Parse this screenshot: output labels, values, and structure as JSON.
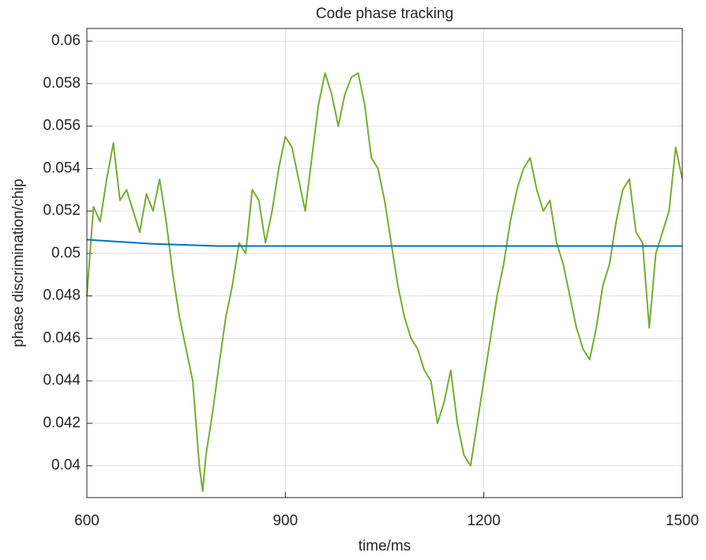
{
  "chart_data": {
    "type": "line",
    "title": "Code phase tracking",
    "x_label": "time/ms",
    "y_label": "phase discrimination/chip",
    "xlim": [
      600,
      1500
    ],
    "xticks": [
      600,
      900,
      1200,
      1500
    ],
    "ylim": [
      0.0385,
      0.0606
    ],
    "yticks": [
      0.04,
      0.042,
      0.044,
      0.046,
      0.048,
      0.05,
      0.052,
      0.054,
      0.056,
      0.058,
      0.06
    ],
    "grid": true,
    "series": [
      {
        "color": "#77ac30",
        "x": [
          600,
          610,
          620,
          630,
          640,
          650,
          660,
          670,
          680,
          690,
          700,
          710,
          720,
          730,
          740,
          750,
          760,
          770,
          775,
          780,
          790,
          800,
          810,
          820,
          830,
          840,
          850,
          860,
          870,
          880,
          890,
          900,
          910,
          920,
          930,
          940,
          950,
          960,
          970,
          980,
          990,
          1000,
          1010,
          1020,
          1030,
          1040,
          1050,
          1060,
          1070,
          1080,
          1090,
          1100,
          1110,
          1120,
          1130,
          1140,
          1150,
          1160,
          1170,
          1180,
          1190,
          1200,
          1210,
          1220,
          1230,
          1240,
          1250,
          1260,
          1270,
          1280,
          1290,
          1300,
          1310,
          1320,
          1330,
          1340,
          1350,
          1360,
          1370,
          1380,
          1390,
          1400,
          1410,
          1420,
          1430,
          1440,
          1450,
          1460,
          1470,
          1480,
          1490,
          1500
        ],
        "values": [
          0.048,
          0.0522,
          0.0515,
          0.0535,
          0.0552,
          0.0525,
          0.053,
          0.052,
          0.051,
          0.0528,
          0.052,
          0.0535,
          0.0515,
          0.049,
          0.047,
          0.0455,
          0.044,
          0.04,
          0.0388,
          0.0405,
          0.0425,
          0.0448,
          0.047,
          0.0485,
          0.0505,
          0.05,
          0.053,
          0.0525,
          0.0505,
          0.052,
          0.054,
          0.0555,
          0.055,
          0.0535,
          0.052,
          0.0545,
          0.057,
          0.0585,
          0.0575,
          0.056,
          0.0575,
          0.0583,
          0.0585,
          0.057,
          0.0545,
          0.054,
          0.0525,
          0.0505,
          0.0485,
          0.047,
          0.046,
          0.0455,
          0.0445,
          0.044,
          0.042,
          0.043,
          0.0445,
          0.042,
          0.0405,
          0.04,
          0.042,
          0.044,
          0.046,
          0.048,
          0.0495,
          0.0515,
          0.053,
          0.054,
          0.0545,
          0.053,
          0.052,
          0.0525,
          0.0505,
          0.0495,
          0.048,
          0.0465,
          0.0455,
          0.045,
          0.0465,
          0.0485,
          0.0495,
          0.0515,
          0.053,
          0.0535,
          0.051,
          0.0505,
          0.0465,
          0.05,
          0.051,
          0.052,
          0.055,
          0.0535
        ]
      },
      {
        "color": "#0072bd",
        "x": [
          600,
          650,
          700,
          750,
          800,
          900,
          1000,
          1100,
          1200,
          1300,
          1400,
          1500
        ],
        "values": [
          0.05065,
          0.05055,
          0.05045,
          0.0504,
          0.05035,
          0.05035,
          0.05035,
          0.05035,
          0.05035,
          0.05035,
          0.05035,
          0.05035
        ]
      }
    ]
  }
}
